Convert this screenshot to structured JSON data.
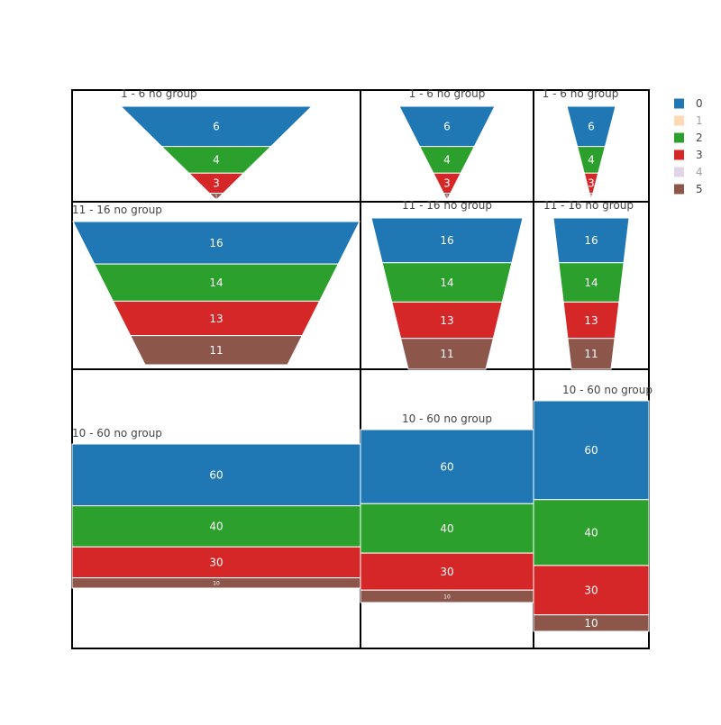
{
  "chart_data": {
    "type": "funnelarea",
    "legend": {
      "position": "top-right",
      "entries": [
        {
          "label": "0",
          "color": "#1f77b4",
          "active": true
        },
        {
          "label": "1",
          "color": "#ffbb78",
          "active": false
        },
        {
          "label": "2",
          "color": "#2ca02c",
          "active": true
        },
        {
          "label": "3",
          "color": "#d62728",
          "active": true
        },
        {
          "label": "4",
          "color": "#c5b0d5",
          "active": false
        },
        {
          "label": "5",
          "color": "#8c564b",
          "active": true
        }
      ]
    },
    "panels": [
      {
        "title": "1 - 6 no group",
        "row": 0,
        "col": 0,
        "shape": "tri",
        "slices": [
          {
            "value": 6,
            "cat": 0
          },
          {
            "value": 4,
            "cat": 2
          },
          {
            "value": 3,
            "cat": 3
          },
          {
            "value": 1,
            "cat": 5
          }
        ]
      },
      {
        "title": "1 - 6 no group",
        "row": 0,
        "col": 1,
        "shape": "tri",
        "slices": [
          {
            "value": 6,
            "cat": 0
          },
          {
            "value": 4,
            "cat": 2
          },
          {
            "value": 3,
            "cat": 3
          },
          {
            "value": 1,
            "cat": 5
          }
        ]
      },
      {
        "title": "1 - 6 no group",
        "row": 0,
        "col": 2,
        "shape": "tri",
        "slices": [
          {
            "value": 6,
            "cat": 0
          },
          {
            "value": 4,
            "cat": 2
          },
          {
            "value": 3,
            "cat": 3
          },
          {
            "value": 1,
            "cat": 5
          }
        ]
      },
      {
        "title": "11 - 16 no group",
        "row": 1,
        "col": 0,
        "shape": "trap",
        "slices": [
          {
            "value": 16,
            "cat": 0
          },
          {
            "value": 14,
            "cat": 2
          },
          {
            "value": 13,
            "cat": 3
          },
          {
            "value": 11,
            "cat": 5
          }
        ]
      },
      {
        "title": "11 - 16 no group",
        "row": 1,
        "col": 1,
        "shape": "trap",
        "slices": [
          {
            "value": 16,
            "cat": 0
          },
          {
            "value": 14,
            "cat": 2
          },
          {
            "value": 13,
            "cat": 3
          },
          {
            "value": 11,
            "cat": 5
          }
        ]
      },
      {
        "title": "11 - 16 no group",
        "row": 1,
        "col": 2,
        "shape": "trap",
        "slices": [
          {
            "value": 16,
            "cat": 0
          },
          {
            "value": 14,
            "cat": 2
          },
          {
            "value": 13,
            "cat": 3
          },
          {
            "value": 11,
            "cat": 5
          }
        ]
      },
      {
        "title": "10 - 60 no group",
        "row": 2,
        "col": 0,
        "shape": "rect",
        "slices": [
          {
            "value": 60,
            "cat": 0
          },
          {
            "value": 40,
            "cat": 2
          },
          {
            "value": 30,
            "cat": 3
          },
          {
            "value": 10,
            "cat": 5
          }
        ]
      },
      {
        "title": "10 - 60 no group",
        "row": 2,
        "col": 1,
        "shape": "rect",
        "slices": [
          {
            "value": 60,
            "cat": 0
          },
          {
            "value": 40,
            "cat": 2
          },
          {
            "value": 30,
            "cat": 3
          },
          {
            "value": 10,
            "cat": 5
          }
        ]
      },
      {
        "title": "10 - 60 no group",
        "row": 2,
        "col": 2,
        "shape": "rect",
        "slices": [
          {
            "value": 60,
            "cat": 0
          },
          {
            "value": 40,
            "cat": 2
          },
          {
            "value": 30,
            "cat": 3
          },
          {
            "value": 10,
            "cat": 5
          }
        ]
      }
    ]
  }
}
